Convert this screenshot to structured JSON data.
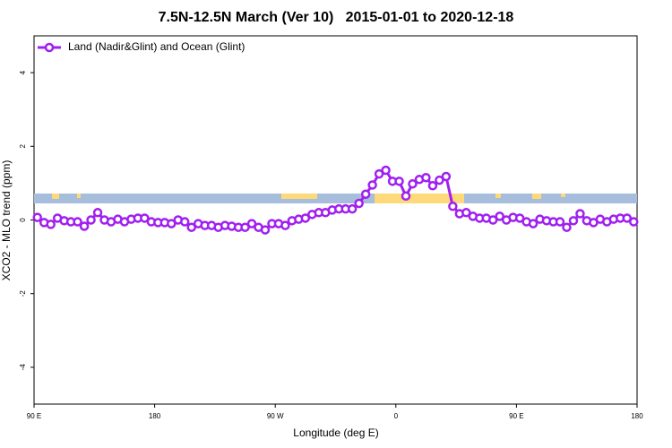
{
  "chart_data": {
    "type": "line",
    "title": "7.5N-12.5N March (Ver 10)   2015-01-01 to 2020-12-18",
    "xlabel": "Longitude (deg E)",
    "ylabel": "XCO2 - MLO trend (ppm)",
    "xlim": [
      90,
      540
    ],
    "ylim": [
      -5,
      5
    ],
    "xticks": [
      {
        "value": 90,
        "label": "90 E"
      },
      {
        "value": 180,
        "label": "180"
      },
      {
        "value": 270,
        "label": "90 W"
      },
      {
        "value": 360,
        "label": "0"
      },
      {
        "value": 450,
        "label": "90 E"
      },
      {
        "value": 540,
        "label": "180"
      }
    ],
    "yticks": [
      -4,
      -2,
      0,
      2,
      4
    ],
    "legend": "top-left",
    "x": [
      92.5,
      97.5,
      102.5,
      107.5,
      112.5,
      117.5,
      122.5,
      127.5,
      132.5,
      137.5,
      142.5,
      147.5,
      152.5,
      157.5,
      162.5,
      167.5,
      172.5,
      177.5,
      182.5,
      187.5,
      192.5,
      197.5,
      202.5,
      207.5,
      212.5,
      217.5,
      222.5,
      227.5,
      232.5,
      237.5,
      242.5,
      247.5,
      252.5,
      257.5,
      262.5,
      267.5,
      272.5,
      277.5,
      282.5,
      287.5,
      292.5,
      297.5,
      302.5,
      307.5,
      312.5,
      317.5,
      322.5,
      327.5,
      332.5,
      337.5,
      342.5,
      347.5,
      352.5,
      357.5,
      362.5,
      367.5,
      372.5,
      377.5,
      382.5,
      387.5,
      392.5,
      397.5,
      402.5,
      407.5,
      412.5,
      417.5,
      422.5,
      427.5,
      432.5,
      437.5,
      442.5,
      447.5,
      452.5,
      457.5,
      462.5,
      467.5,
      472.5,
      477.5,
      482.5,
      487.5,
      492.5,
      497.5,
      502.5,
      507.5,
      512.5,
      517.5,
      522.5,
      527.5,
      532.5,
      537.5
    ],
    "series": [
      {
        "name": "Land (Nadir&Glint) and Ocean (Glint)",
        "color": "#a020f0",
        "values": [
          0.07,
          -0.07,
          -0.12,
          0.05,
          -0.02,
          -0.05,
          -0.05,
          -0.17,
          0,
          0.2,
          0,
          -0.05,
          0.02,
          -0.05,
          0.02,
          0.05,
          0.05,
          -0.05,
          -0.07,
          -0.07,
          -0.1,
          0,
          -0.05,
          -0.2,
          -0.1,
          -0.15,
          -0.15,
          -0.2,
          -0.15,
          -0.17,
          -0.2,
          -0.2,
          -0.1,
          -0.2,
          -0.27,
          -0.1,
          -0.1,
          -0.15,
          -0.02,
          0.02,
          0.05,
          0.15,
          0.2,
          0.2,
          0.27,
          0.3,
          0.3,
          0.3,
          0.45,
          0.7,
          0.95,
          1.25,
          1.35,
          1.05,
          1.05,
          0.65,
          0.98,
          1.1,
          1.15,
          0.93,
          1.08,
          1.18,
          0.37,
          0.17,
          0.2,
          0.1,
          0.05,
          0.05,
          0,
          0.1,
          0,
          0.07,
          0.05,
          -0.05,
          -0.1,
          0.02,
          -0.02,
          -0.05,
          -0.05,
          -0.2,
          -0.02,
          0.17,
          -0.02,
          -0.07,
          0.02,
          -0.05,
          0.02,
          0.05,
          0.05,
          -0.05
        ]
      }
    ]
  }
}
